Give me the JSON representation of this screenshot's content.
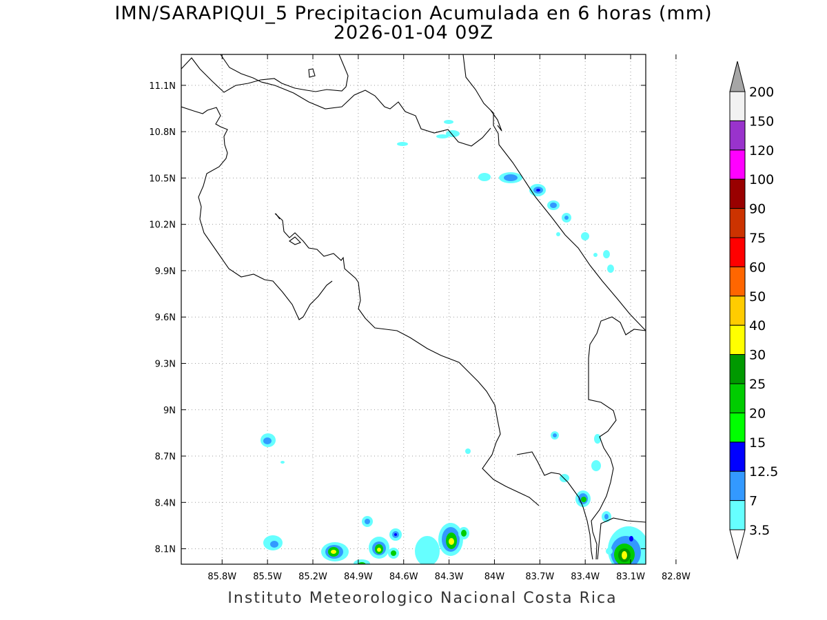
{
  "title_line1": "IMN/SARAPIQUI_5 Precipitacion Acumulada en 6 horas (mm)",
  "title_line2": "2026-01-04 09Z",
  "footer": "Instituto Meteorologico Nacional Costa Rica",
  "map": {
    "lon_range": [
      -86.07,
      -83.0
    ],
    "lat_range": [
      8.0,
      11.3
    ],
    "lon_ticks": [
      {
        "value": -85.8,
        "label": "85.8W"
      },
      {
        "value": -85.5,
        "label": "85.5W"
      },
      {
        "value": -85.2,
        "label": "85.2W"
      },
      {
        "value": -84.9,
        "label": "84.9W"
      },
      {
        "value": -84.6,
        "label": "84.6W"
      },
      {
        "value": -84.3,
        "label": "84.3W"
      },
      {
        "value": -84.0,
        "label": "84W"
      },
      {
        "value": -83.7,
        "label": "83.7W"
      },
      {
        "value": -83.4,
        "label": "83.4W"
      },
      {
        "value": -83.1,
        "label": "83.1W"
      },
      {
        "value": -82.8,
        "label": "82.8W"
      }
    ],
    "lat_ticks": [
      {
        "value": 11.1,
        "label": "11.1N"
      },
      {
        "value": 10.8,
        "label": "10.8N"
      },
      {
        "value": 10.5,
        "label": "10.5N"
      },
      {
        "value": 10.2,
        "label": "10.2N"
      },
      {
        "value": 9.9,
        "label": "9.9N"
      },
      {
        "value": 9.6,
        "label": "9.6N"
      },
      {
        "value": 9.3,
        "label": "9.3N"
      },
      {
        "value": 9.0,
        "label": "9N"
      },
      {
        "value": 8.7,
        "label": "8.7N"
      },
      {
        "value": 8.4,
        "label": "8.4N"
      },
      {
        "value": 8.1,
        "label": "8.1N"
      }
    ]
  },
  "colorbar": {
    "levels": [
      "3.5",
      "7",
      "12.5",
      "15",
      "20",
      "25",
      "30",
      "40",
      "50",
      "60",
      "75",
      "90",
      "100",
      "120",
      "150",
      "200"
    ],
    "colors": [
      "#66ffff",
      "#3399ff",
      "#0000ff",
      "#00ff00",
      "#00cc00",
      "#009900",
      "#ffff00",
      "#ffcc00",
      "#ff6600",
      "#ff0000",
      "#cc3300",
      "#990000",
      "#ff00ff",
      "#9933cc",
      "#f2f2f2"
    ],
    "top_arrow_color": "#a6a6a6",
    "bottom_arrow_color": "#ffffff"
  }
}
